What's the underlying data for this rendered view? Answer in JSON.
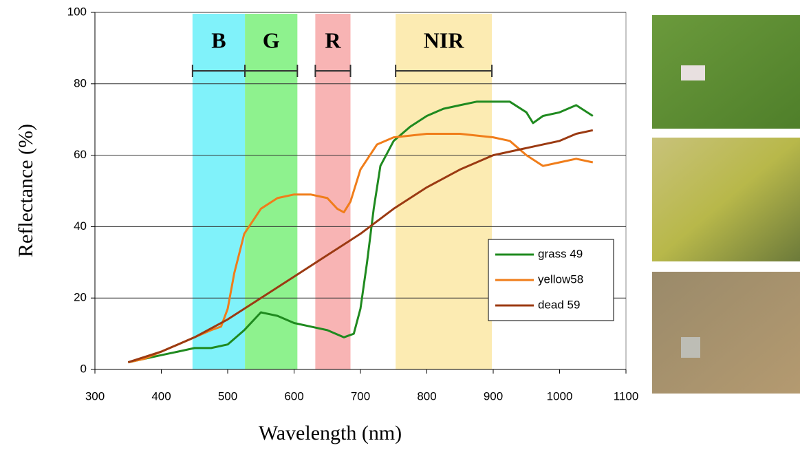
{
  "chart_data": {
    "type": "line",
    "y_label": "Reflectance (%)",
    "x_label": "Wavelength (nm)",
    "xlim": [
      300,
      1100
    ],
    "xticks": [
      300,
      400,
      500,
      600,
      700,
      800,
      900,
      1000,
      1100
    ],
    "ylim": [
      0,
      100
    ],
    "yticks": [
      0,
      20,
      40,
      60,
      80,
      100
    ],
    "grid": true,
    "legend": "center right",
    "bands": [
      {
        "label": "B",
        "range": [
          447,
          526
        ],
        "color": "#80f2fa",
        "text_color": "#2b3a9c"
      },
      {
        "label": "G",
        "range": [
          526,
          605
        ],
        "color": "#8ef28e",
        "text_color": "#1b7a1b"
      },
      {
        "label": "R",
        "range": [
          632,
          685
        ],
        "color": "#f8b4b4",
        "text_color": "#e02020"
      },
      {
        "label": "NIR",
        "range": [
          753,
          898
        ],
        "color": "#fcebb2",
        "text_color": "#e04512"
      }
    ],
    "series": [
      {
        "name": "grass 49",
        "color": "#1f8a1f",
        "x": [
          350,
          375,
          400,
          425,
          450,
          475,
          500,
          525,
          550,
          575,
          600,
          625,
          650,
          675,
          690,
          700,
          710,
          720,
          730,
          750,
          775,
          800,
          825,
          850,
          875,
          900,
          925,
          950,
          960,
          975,
          1000,
          1025,
          1050
        ],
        "values": [
          2,
          3,
          4,
          5,
          6,
          6,
          7,
          11,
          16,
          15,
          13,
          12,
          11,
          9,
          10,
          17,
          30,
          45,
          57,
          64,
          68,
          71,
          73,
          74,
          75,
          75,
          75,
          72,
          69,
          71,
          72,
          74,
          71
        ]
      },
      {
        "name": "yellow58",
        "color": "#f07d1a",
        "x": [
          350,
          375,
          400,
          425,
          450,
          475,
          490,
          500,
          510,
          525,
          550,
          575,
          600,
          625,
          650,
          665,
          675,
          685,
          700,
          725,
          750,
          775,
          800,
          850,
          900,
          925,
          950,
          975,
          1000,
          1025,
          1050
        ],
        "values": [
          2,
          3,
          5,
          7,
          9,
          11,
          12,
          17,
          27,
          38,
          45,
          48,
          49,
          49,
          48,
          45,
          44,
          47,
          56,
          63,
          65,
          65.5,
          66,
          66,
          65,
          64,
          60,
          57,
          58,
          59,
          58
        ]
      },
      {
        "name": "dead 59",
        "color": "#9b3a12",
        "x": [
          350,
          400,
          450,
          500,
          550,
          600,
          650,
          700,
          750,
          800,
          850,
          900,
          950,
          1000,
          1025,
          1050
        ],
        "values": [
          2,
          5,
          9,
          14,
          20,
          26,
          32,
          38,
          45,
          51,
          56,
          60,
          62,
          64,
          66,
          67
        ]
      }
    ]
  }
}
